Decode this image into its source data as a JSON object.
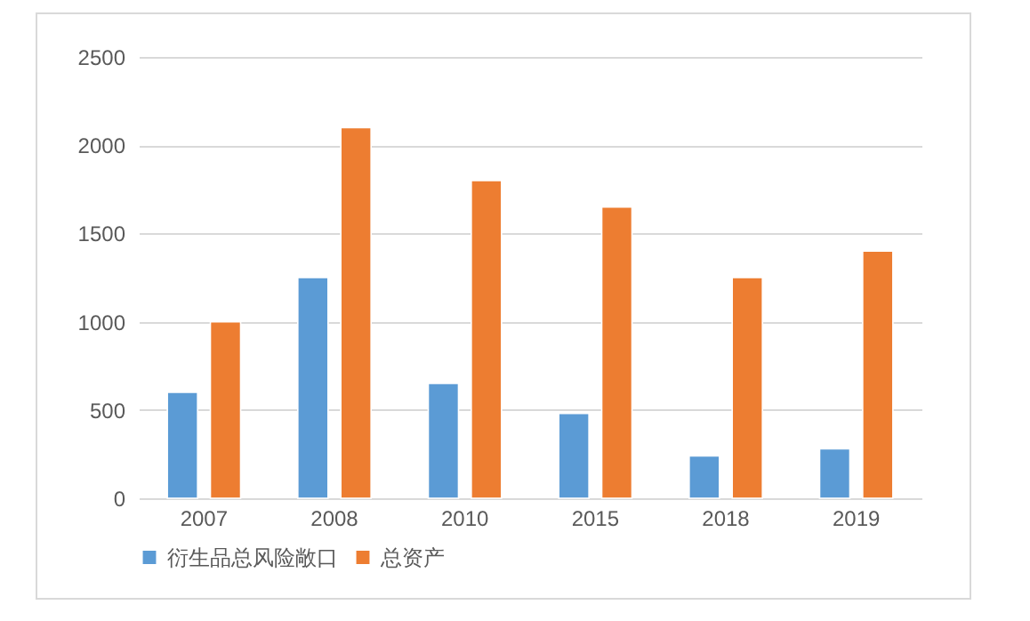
{
  "chart_data": {
    "type": "bar",
    "categories": [
      "2007",
      "2008",
      "2010",
      "2015",
      "2018",
      "2019"
    ],
    "series": [
      {
        "name": "衍生品总风险敞口",
        "color": "#5b9bd5",
        "values": [
          600,
          1250,
          650,
          480,
          240,
          280
        ]
      },
      {
        "name": "总资产",
        "color": "#ed7d31",
        "values": [
          1000,
          2100,
          1800,
          1650,
          1250,
          1400
        ]
      }
    ],
    "ylim": [
      0,
      2500
    ],
    "yticks": [
      0,
      500,
      1000,
      1500,
      2000,
      2500
    ],
    "grid": "y",
    "legend": "bottom"
  }
}
